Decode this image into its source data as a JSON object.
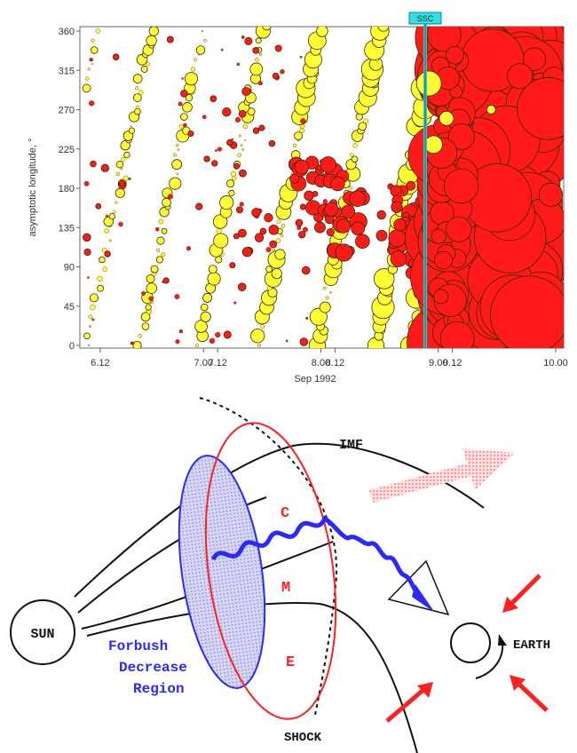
{
  "colors": {
    "increase_marker": "#ff1a1a",
    "decrease_marker": "#ffff33",
    "ssc_line": "#33cccc",
    "cme_loop": "#ff2020",
    "forbush_region": "#2a2aff",
    "forbush_fill": "#c8c8f0",
    "label_red": "#ff2020",
    "label_blue": "#2a2aff"
  },
  "chart_data": {
    "type": "scatter",
    "xlabel": "Sep 1992",
    "ylabel": "asymptotic longitude, °",
    "x_ticks": [
      "6.12",
      "7.00",
      "7.12",
      "8.00",
      "8.12",
      "9.00",
      "9.12",
      "10.00"
    ],
    "y_ticks": [
      "0",
      "45",
      "90",
      "135",
      "180",
      "225",
      "270",
      "315",
      "360"
    ],
    "xlim": [
      6.0,
      10.0
    ],
    "ylim": [
      0,
      360
    ],
    "marker": "bubble sized by intensity; red = increase, yellow = decrease",
    "ssc_label": "SSC",
    "ssc_x": 9.04,
    "red_region_start_x": 9.0
  },
  "diagram": {
    "sun_label": "SUN",
    "earth_label": "EARTH",
    "imf_label": "IMF",
    "cme_letters": [
      "C",
      "M",
      "E"
    ],
    "shock_label": "SHOCK",
    "forbush_lines": [
      "Forbush",
      "Decrease",
      "Region"
    ]
  }
}
